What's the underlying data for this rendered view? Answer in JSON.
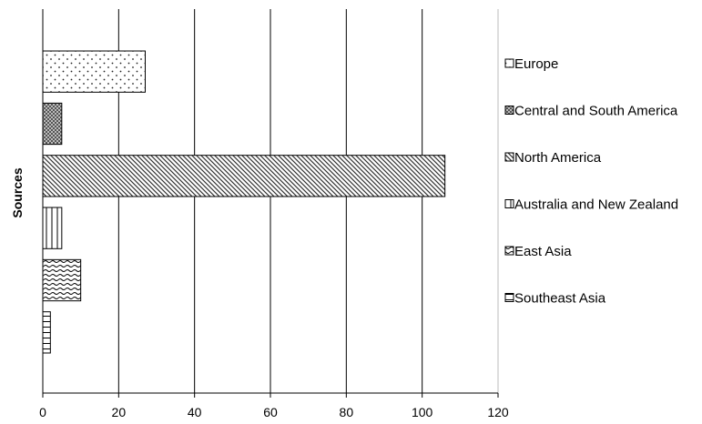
{
  "chart_data": {
    "type": "bar",
    "orientation": "horizontal",
    "title": "",
    "xlabel": "",
    "ylabel": "Sources",
    "xlim": [
      0,
      120
    ],
    "xticks": [
      0,
      20,
      40,
      60,
      80,
      100,
      120
    ],
    "grid": "vertical",
    "legend_position": "right",
    "legend_order": [
      "Europe",
      "Central and South America",
      "North America",
      "Australia and New Zealand",
      "East Asia",
      "Southeast Asia"
    ],
    "series": [
      {
        "name": "Southeast Asia",
        "value": 2,
        "pattern": "horizontal-lines"
      },
      {
        "name": "East Asia",
        "value": 10,
        "pattern": "wave"
      },
      {
        "name": "Australia and New Zealand",
        "value": 5,
        "pattern": "vertical-lines"
      },
      {
        "name": "North America",
        "value": 106,
        "pattern": "diagonal"
      },
      {
        "name": "Central and South America",
        "value": 5,
        "pattern": "crosshatch"
      },
      {
        "name": "Europe",
        "value": 27,
        "pattern": "dots"
      }
    ]
  }
}
